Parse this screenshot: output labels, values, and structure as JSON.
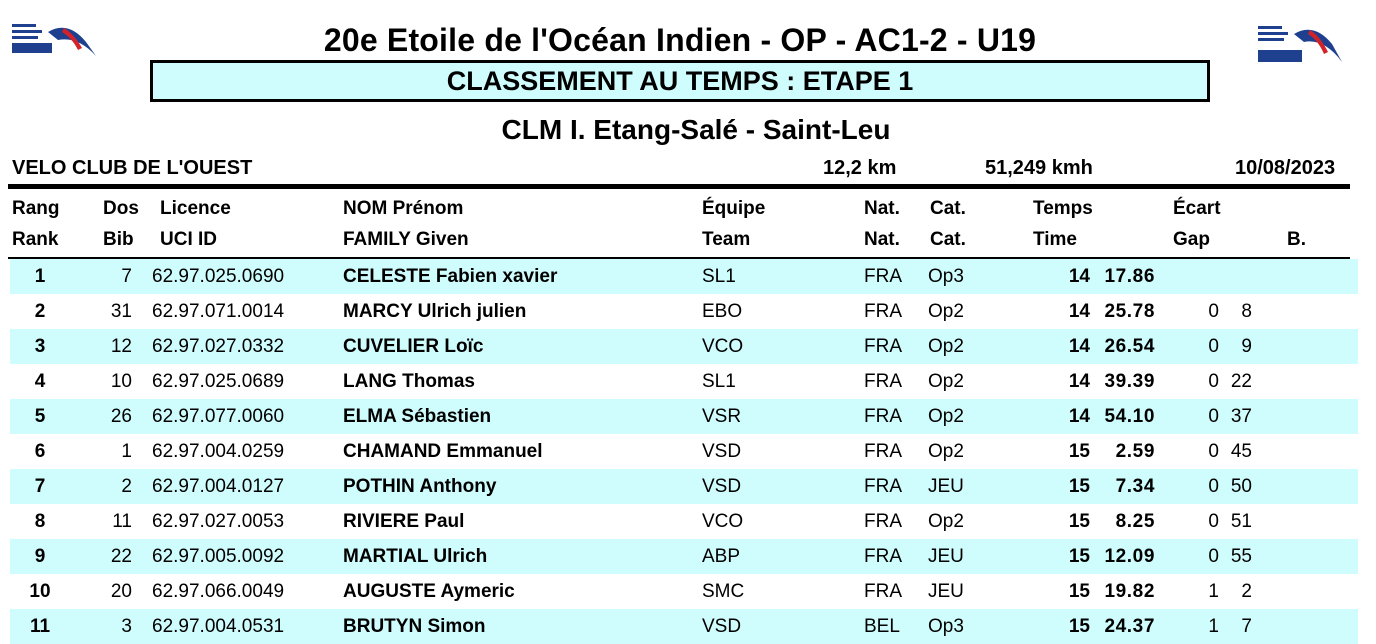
{
  "header": {
    "title": "20e Etoile de l'Océan Indien - OP - AC1-2 - U19",
    "subtitle": "CLASSEMENT AU TEMPS : ETAPE 1",
    "stage": "CLM I. Etang-Salé - Saint-Leu",
    "logo_icon": "federation-logo-icon"
  },
  "info": {
    "club": "VELO CLUB DE L'OUEST",
    "distance": "12,2 km",
    "speed": "51,249 kmh",
    "date": "10/08/2023"
  },
  "columns": {
    "row1": {
      "rank": "Rang",
      "bib": "Dos",
      "licence": "Licence",
      "name": "NOM Prénom",
      "team": "Équipe",
      "nat": "Nat.",
      "cat": "Cat.",
      "time": "Temps",
      "gap": "Écart"
    },
    "row2": {
      "rank": "Rank",
      "bib": "Bib",
      "licence": "UCI ID",
      "name": "FAMILY Given",
      "team": "Team",
      "nat": "Nat.",
      "cat": "Cat.",
      "time": "Time",
      "gap": "Gap",
      "bonus": "B."
    }
  },
  "rows": [
    {
      "rank": "1",
      "bib": "7",
      "licence": "62.97.025.0690",
      "name": "CELESTE Fabien xavier",
      "team": "SL1",
      "nat": "FRA",
      "cat": "Op3",
      "time_min": "14",
      "time_sec": "17.86",
      "gap_min": "",
      "gap_sec": ""
    },
    {
      "rank": "2",
      "bib": "31",
      "licence": "62.97.071.0014",
      "name": "MARCY Ulrich julien",
      "team": "EBO",
      "nat": "FRA",
      "cat": "Op2",
      "time_min": "14",
      "time_sec": "25.78",
      "gap_min": "0",
      "gap_sec": "8"
    },
    {
      "rank": "3",
      "bib": "12",
      "licence": "62.97.027.0332",
      "name": "CUVELIER Loïc",
      "team": "VCO",
      "nat": "FRA",
      "cat": "Op2",
      "time_min": "14",
      "time_sec": "26.54",
      "gap_min": "0",
      "gap_sec": "9"
    },
    {
      "rank": "4",
      "bib": "10",
      "licence": "62.97.025.0689",
      "name": "LANG Thomas",
      "team": "SL1",
      "nat": "FRA",
      "cat": "Op2",
      "time_min": "14",
      "time_sec": "39.39",
      "gap_min": "0",
      "gap_sec": "22"
    },
    {
      "rank": "5",
      "bib": "26",
      "licence": "62.97.077.0060",
      "name": "ELMA Sébastien",
      "team": "VSR",
      "nat": "FRA",
      "cat": "Op2",
      "time_min": "14",
      "time_sec": "54.10",
      "gap_min": "0",
      "gap_sec": "37"
    },
    {
      "rank": "6",
      "bib": "1",
      "licence": "62.97.004.0259",
      "name": "CHAMAND Emmanuel",
      "team": "VSD",
      "nat": "FRA",
      "cat": "Op2",
      "time_min": "15",
      "time_sec": "2.59",
      "gap_min": "0",
      "gap_sec": "45"
    },
    {
      "rank": "7",
      "bib": "2",
      "licence": "62.97.004.0127",
      "name": "POTHIN Anthony",
      "team": "VSD",
      "nat": "FRA",
      "cat": "JEU",
      "time_min": "15",
      "time_sec": "7.34",
      "gap_min": "0",
      "gap_sec": "50"
    },
    {
      "rank": "8",
      "bib": "11",
      "licence": "62.97.027.0053",
      "name": "RIVIERE Paul",
      "team": "VCO",
      "nat": "FRA",
      "cat": "Op2",
      "time_min": "15",
      "time_sec": "8.25",
      "gap_min": "0",
      "gap_sec": "51"
    },
    {
      "rank": "9",
      "bib": "22",
      "licence": "62.97.005.0092",
      "name": "MARTIAL Ulrich",
      "team": "ABP",
      "nat": "FRA",
      "cat": "JEU",
      "time_min": "15",
      "time_sec": "12.09",
      "gap_min": "0",
      "gap_sec": "55"
    },
    {
      "rank": "10",
      "bib": "20",
      "licence": "62.97.066.0049",
      "name": "AUGUSTE Aymeric",
      "team": "SMC",
      "nat": "FRA",
      "cat": "JEU",
      "time_min": "15",
      "time_sec": "19.82",
      "gap_min": "1",
      "gap_sec": "2"
    },
    {
      "rank": "11",
      "bib": "3",
      "licence": "62.97.004.0531",
      "name": "BRUTYN Simon",
      "team": "VSD",
      "nat": "BEL",
      "cat": "Op3",
      "time_min": "15",
      "time_sec": "24.37",
      "gap_min": "1",
      "gap_sec": "7"
    }
  ],
  "colors": {
    "stripe": "#cffcfc",
    "logo_blue": "#1f3f8f",
    "logo_red": "#d2232a"
  }
}
